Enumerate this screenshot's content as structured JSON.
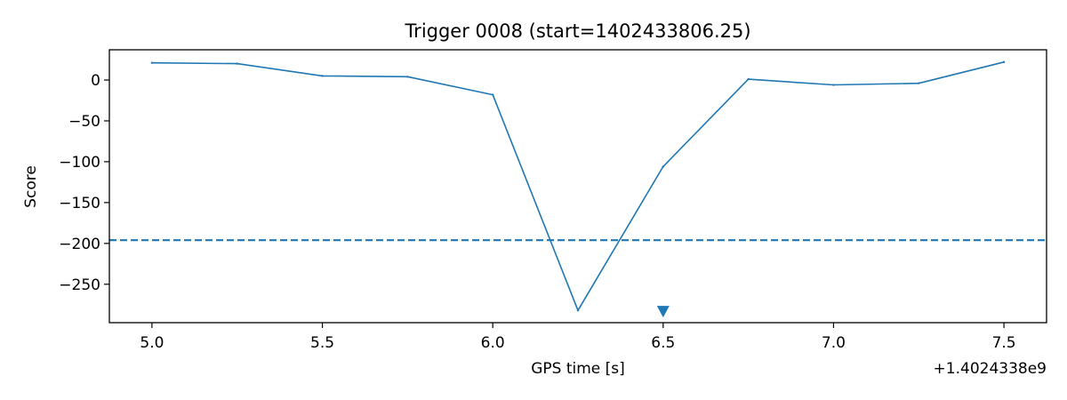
{
  "chart_data": {
    "type": "line",
    "title": "Trigger 0008 (start=1402433806.25)",
    "xlabel": "GPS time [s]",
    "ylabel": "Score",
    "x_offset_label": "+1.4024338e9",
    "x_ticks": [
      "5.0",
      "5.5",
      "6.0",
      "6.5",
      "7.0",
      "7.5"
    ],
    "y_ticks": [
      "0",
      "−50",
      "−100",
      "−150",
      "−200",
      "−250"
    ],
    "xlim": [
      4.875,
      7.625
    ],
    "ylim": [
      -297,
      37
    ],
    "grid": false,
    "series": [
      {
        "color": "#1f77b4",
        "x": [
          5.0,
          5.25,
          5.5,
          5.75,
          6.0,
          6.25,
          6.5,
          6.75,
          7.0,
          7.25,
          7.5
        ],
        "y": [
          21,
          20,
          5,
          4,
          -18,
          -282,
          -106,
          1,
          -6,
          -4,
          22
        ]
      }
    ],
    "threshold": {
      "y": -196,
      "style": "dashed",
      "color": "#1f77b4"
    },
    "marker": {
      "x": 6.5,
      "y": -283,
      "shape": "triangle-down",
      "color": "#1f77b4"
    }
  }
}
